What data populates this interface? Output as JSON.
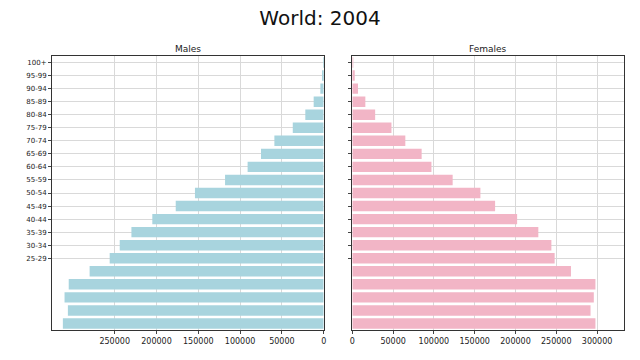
{
  "title": "World: 2004",
  "chart_data": [
    {
      "type": "bar",
      "title": "Males",
      "orientation": "horizontal",
      "grid": true,
      "categories": [
        "100+",
        "95-99",
        "90-94",
        "85-89",
        "80-84",
        "75-79",
        "70-74",
        "65-69",
        "60-64",
        "55-59",
        "50-54",
        "45-49",
        "40-44",
        "35-39",
        "30-34",
        "25-29",
        null,
        null,
        null,
        null,
        null
      ],
      "values": [
        500,
        2000,
        4000,
        12000,
        22000,
        37000,
        59000,
        75000,
        91000,
        118000,
        154000,
        177000,
        205000,
        230000,
        244000,
        256000,
        280000,
        305000,
        310000,
        306000,
        312000
      ],
      "color": "#a8d4de",
      "xlim": [
        325000,
        0
      ],
      "xticks": [
        250000,
        200000,
        150000,
        100000,
        50000,
        0
      ]
    },
    {
      "type": "bar",
      "title": "Females",
      "orientation": "horizontal",
      "grid": true,
      "tick_labels": "x",
      "categories": [
        "100+",
        "95-99",
        "90-94",
        "85-89",
        "80-84",
        "75-79",
        "70-74",
        "65-69",
        "60-64",
        "55-59",
        "50-54",
        "45-49",
        "40-44",
        "35-39",
        "30-34",
        "25-29",
        null,
        null,
        null,
        null,
        null
      ],
      "values": [
        1000,
        3000,
        7000,
        16000,
        28000,
        48000,
        65000,
        85000,
        97000,
        123000,
        157000,
        175000,
        202000,
        228000,
        244000,
        248000,
        268000,
        298000,
        296000,
        292000,
        298000
      ],
      "color": "#f2b5c6",
      "xlim": [
        0,
        333000
      ],
      "xticks": [
        0,
        50000,
        100000,
        150000,
        200000,
        250000,
        300000
      ]
    }
  ]
}
